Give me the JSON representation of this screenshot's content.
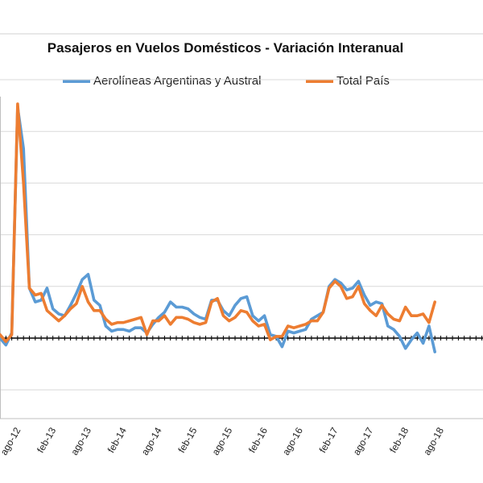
{
  "chart_data": {
    "type": "line",
    "title": "Pasajeros en Vuelos Domésticos - Variación Interanual",
    "xlabel": "",
    "ylabel": "",
    "x_tick_labels": [
      "ago-12",
      "feb-13",
      "ago-13",
      "feb-14",
      "ago-14",
      "feb-15",
      "ago-15",
      "feb-16",
      "ago-16",
      "feb-17",
      "ago-17",
      "feb-18",
      "ago-18"
    ],
    "grid": true,
    "legend_position": "top",
    "series": [
      {
        "name": "Aerolíneas Argentinas y Austral",
        "color": "#5b9bd5",
        "values": [
          0,
          -4,
          3,
          134,
          110,
          29,
          21,
          22,
          29,
          17,
          14,
          13,
          19,
          26,
          34,
          37,
          22,
          19,
          7,
          4,
          5,
          5,
          4,
          6,
          6,
          3,
          8,
          12,
          15,
          21,
          18,
          18,
          17,
          14,
          12,
          11,
          22,
          22,
          16,
          13,
          19,
          23,
          24,
          13,
          10,
          13,
          2,
          1,
          -5,
          4,
          3,
          4,
          5,
          11,
          13,
          15,
          30,
          34,
          32,
          28,
          29,
          33,
          25,
          19,
          21,
          20,
          7,
          5,
          1,
          -6,
          -1,
          3,
          -3,
          7,
          -8
        ]
      },
      {
        "name": "Total País",
        "color": "#ed7d31",
        "values": [
          2,
          -2,
          2,
          136,
          90,
          29,
          25,
          26,
          16,
          13,
          10,
          13,
          17,
          20,
          30,
          21,
          16,
          16,
          11,
          8,
          9,
          9,
          10,
          11,
          12,
          2,
          10,
          10,
          13,
          8,
          12,
          12,
          11,
          9,
          8,
          9,
          21,
          23,
          13,
          10,
          12,
          16,
          15,
          10,
          7,
          8,
          -1,
          1,
          1,
          7,
          6,
          7,
          8,
          10,
          10,
          15,
          29,
          33,
          30,
          23,
          24,
          30,
          20,
          16,
          13,
          19,
          14,
          11,
          10,
          18,
          13,
          13,
          14,
          9,
          21
        ]
      }
    ]
  }
}
